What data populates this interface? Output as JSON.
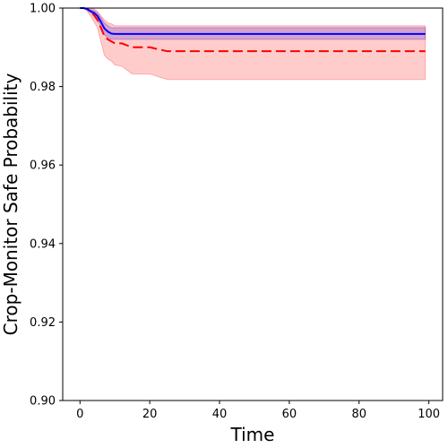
{
  "chart_data": {
    "type": "line",
    "title": "",
    "xlabel": "Time",
    "ylabel": "Crop-Monitor Safe Probability",
    "xlim": [
      -4.95,
      103.95
    ],
    "ylim": [
      0.9,
      1.0
    ],
    "xticks": [
      0,
      20,
      40,
      60,
      80,
      100
    ],
    "xtick_labels": [
      "0",
      "20",
      "40",
      "60",
      "80",
      "100"
    ],
    "yticks": [
      0.9,
      0.92,
      0.94,
      0.96,
      0.98,
      1.0
    ],
    "ytick_labels": [
      "0.90",
      "0.92",
      "0.94",
      "0.96",
      "0.98",
      "1.00"
    ],
    "grid": false,
    "series": [
      {
        "color": "#0000ff",
        "line_style": "solid",
        "band_color": "#0000ff",
        "x": [
          0,
          1,
          2,
          3,
          4,
          5,
          6,
          7,
          8,
          9,
          10,
          99
        ],
        "y": [
          1.0,
          1.0,
          0.9998,
          0.9992,
          0.9988,
          0.998,
          0.9965,
          0.9948,
          0.994,
          0.9935,
          0.9934,
          0.9934
        ],
        "band_low": [
          1.0,
          1.0,
          0.9996,
          0.9988,
          0.9982,
          0.9972,
          0.9952,
          0.9932,
          0.9924,
          0.992,
          0.992,
          0.992
        ],
        "band_high": [
          1.0,
          1.0,
          1.0,
          0.9996,
          0.9994,
          0.9988,
          0.9976,
          0.9962,
          0.9955,
          0.995,
          0.995,
          0.995
        ]
      },
      {
        "color": "#ff0000",
        "line_style": "dashed",
        "band_color": "#ff0000",
        "x": [
          0,
          1,
          2,
          3,
          4,
          5,
          6,
          7,
          8,
          9,
          10,
          12,
          15,
          20,
          25,
          99
        ],
        "y": [
          1.0,
          1.0,
          0.9998,
          0.999,
          0.9982,
          0.997,
          0.995,
          0.9928,
          0.992,
          0.9915,
          0.991,
          0.991,
          0.99,
          0.99,
          0.989,
          0.989
        ],
        "band_low": [
          1.0,
          1.0,
          0.9992,
          0.998,
          0.9965,
          0.995,
          0.9915,
          0.988,
          0.987,
          0.9865,
          0.9855,
          0.9852,
          0.9832,
          0.9832,
          0.9818,
          0.9818
        ],
        "band_high": [
          1.0,
          1.0,
          1.0,
          1.0,
          0.9998,
          0.9992,
          0.998,
          0.997,
          0.9962,
          0.996,
          0.9955,
          0.9955,
          0.9955,
          0.9955,
          0.9955,
          0.9955
        ]
      }
    ]
  }
}
